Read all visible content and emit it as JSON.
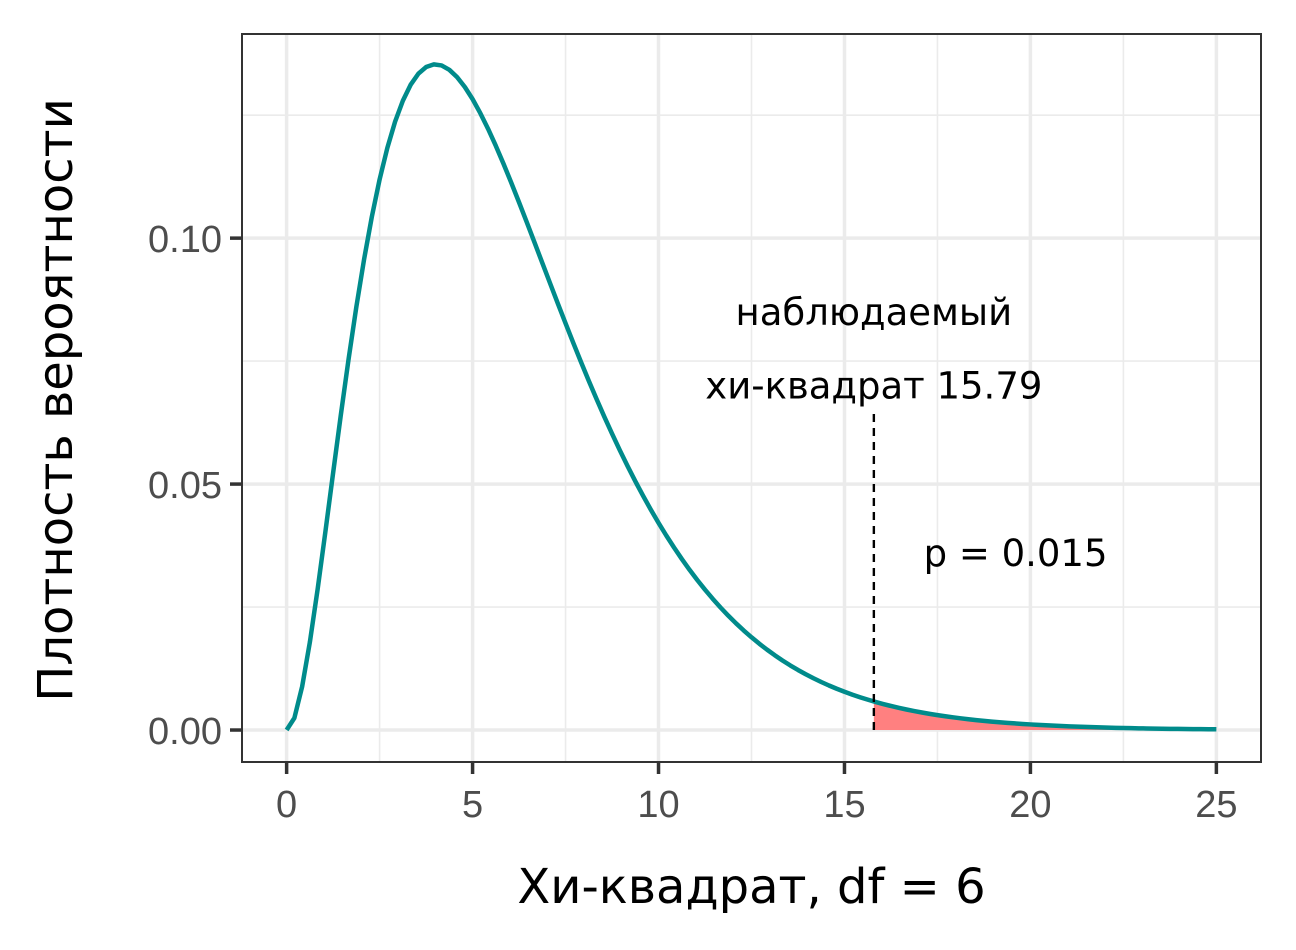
{
  "chart_data": {
    "type": "line",
    "xlabel": "Хи-квадрат, df = 6",
    "ylabel": "Плотность вероятности",
    "xlim": [
      -1.2,
      26.2
    ],
    "ylim": [
      -0.0065,
      0.1415
    ],
    "x_ticks": [
      0,
      5,
      10,
      15,
      20,
      25
    ],
    "x_tick_labels": [
      "0",
      "5",
      "10",
      "15",
      "20",
      "25"
    ],
    "x_minor_ticks": [
      2.5,
      7.5,
      12.5,
      17.5,
      22.5
    ],
    "y_ticks": [
      0.0,
      0.05,
      0.1
    ],
    "y_tick_labels": [
      "0.00",
      "0.05",
      "0.10"
    ],
    "y_minor_ticks": [
      0.025,
      0.075,
      0.125
    ],
    "grid": true,
    "series": [
      {
        "distribution": "chi-square",
        "df": 6,
        "x_range": [
          0,
          25
        ],
        "color": "#008B8B"
      }
    ],
    "shaded_region": {
      "x_from": 15.79,
      "x_to": 25,
      "color": "#FF8080"
    },
    "observed_line": {
      "x": 15.79,
      "y_top": 0.065,
      "style": "dashed",
      "color": "#000000"
    },
    "annotations": [
      {
        "text": "наблюдаемый",
        "x": 15.79,
        "y": 0.085
      },
      {
        "text": "хи-квадрат 15.79",
        "x": 15.79,
        "y": 0.07
      },
      {
        "text": "p = 0.015",
        "x": 19.6,
        "y": 0.036
      }
    ]
  }
}
